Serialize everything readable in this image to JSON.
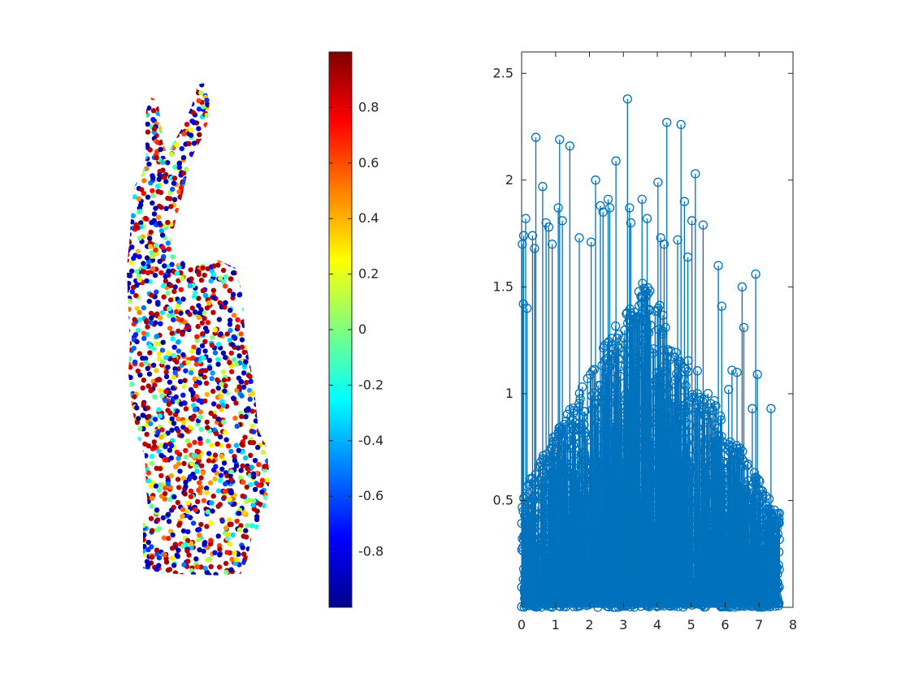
{
  "chart_data": [
    {
      "type": "scatter",
      "panel": "point-cloud",
      "title": "",
      "xlabel": "",
      "ylabel": "",
      "axes_visible": false,
      "colormap": "jet",
      "color_value_range": [
        -1,
        1
      ],
      "point_count": 2200,
      "colorbar": {
        "range": [
          -1,
          1
        ],
        "ticks": [
          0.8,
          0.6,
          0.4,
          0.2,
          0,
          -0.2,
          -0.4,
          -0.6,
          -0.8
        ],
        "tick_labels": [
          "0.8",
          "0.6",
          "0.4",
          "0.2",
          "0",
          "-0.2",
          "-0.4",
          "-0.6",
          "-0.8"
        ]
      }
    },
    {
      "type": "stem",
      "panel": "stem-plot",
      "title": "",
      "xlabel": "",
      "ylabel": "",
      "color": "#0072BD",
      "marker": "circle",
      "xlim": [
        0,
        8
      ],
      "ylim": [
        0,
        2.6
      ],
      "x_ticks": [
        0,
        1,
        2,
        3,
        4,
        5,
        6,
        7,
        8
      ],
      "x_tick_labels": [
        "0",
        "1",
        "2",
        "3",
        "4",
        "5",
        "6",
        "7",
        "8"
      ],
      "y_ticks": [
        0.5,
        1,
        1.5,
        2,
        2.5
      ],
      "y_tick_labels": [
        "0.5",
        "1",
        "1.5",
        "2",
        "2.5"
      ],
      "notable_points": [
        {
          "x": 0.02,
          "y": 1.7
        },
        {
          "x": 0.06,
          "y": 1.74
        },
        {
          "x": 0.12,
          "y": 1.82
        },
        {
          "x": 0.05,
          "y": 1.42
        },
        {
          "x": 0.16,
          "y": 1.4
        },
        {
          "x": 0.32,
          "y": 1.74
        },
        {
          "x": 0.38,
          "y": 1.68
        },
        {
          "x": 0.42,
          "y": 2.2
        },
        {
          "x": 0.62,
          "y": 1.97
        },
        {
          "x": 0.72,
          "y": 1.8
        },
        {
          "x": 0.8,
          "y": 1.78
        },
        {
          "x": 0.9,
          "y": 1.7
        },
        {
          "x": 1.12,
          "y": 2.19
        },
        {
          "x": 1.08,
          "y": 1.87
        },
        {
          "x": 1.2,
          "y": 1.81
        },
        {
          "x": 1.42,
          "y": 2.16
        },
        {
          "x": 1.7,
          "y": 1.73
        },
        {
          "x": 2.05,
          "y": 1.71
        },
        {
          "x": 2.18,
          "y": 2.0
        },
        {
          "x": 2.32,
          "y": 1.88
        },
        {
          "x": 2.4,
          "y": 1.85
        },
        {
          "x": 2.55,
          "y": 1.91
        },
        {
          "x": 2.6,
          "y": 1.87
        },
        {
          "x": 2.78,
          "y": 2.09
        },
        {
          "x": 3.12,
          "y": 2.38
        },
        {
          "x": 3.18,
          "y": 1.87
        },
        {
          "x": 3.22,
          "y": 1.8
        },
        {
          "x": 3.55,
          "y": 1.91
        },
        {
          "x": 3.7,
          "y": 1.82
        },
        {
          "x": 4.02,
          "y": 1.99
        },
        {
          "x": 4.1,
          "y": 1.73
        },
        {
          "x": 4.2,
          "y": 1.7
        },
        {
          "x": 4.28,
          "y": 2.27
        },
        {
          "x": 4.6,
          "y": 1.72
        },
        {
          "x": 4.7,
          "y": 2.26
        },
        {
          "x": 4.8,
          "y": 1.9
        },
        {
          "x": 4.9,
          "y": 1.64
        },
        {
          "x": 5.02,
          "y": 1.81
        },
        {
          "x": 5.12,
          "y": 2.03
        },
        {
          "x": 5.35,
          "y": 1.79
        },
        {
          "x": 5.8,
          "y": 1.6
        },
        {
          "x": 5.9,
          "y": 1.41
        },
        {
          "x": 6.1,
          "y": 1.02
        },
        {
          "x": 6.2,
          "y": 1.11
        },
        {
          "x": 6.35,
          "y": 1.1
        },
        {
          "x": 6.5,
          "y": 1.5
        },
        {
          "x": 6.55,
          "y": 1.31
        },
        {
          "x": 6.8,
          "y": 0.93
        },
        {
          "x": 6.9,
          "y": 1.56
        },
        {
          "x": 6.95,
          "y": 1.09
        },
        {
          "x": 7.1,
          "y": 0.53
        },
        {
          "x": 7.2,
          "y": 0.52
        },
        {
          "x": 7.15,
          "y": 0.46
        },
        {
          "x": 7.12,
          "y": 0.11
        },
        {
          "x": 7.35,
          "y": 0.93
        },
        {
          "x": 7.38,
          "y": 0.24
        },
        {
          "x": 7.6,
          "y": 0.44
        }
      ],
      "bulk_distribution": {
        "x_range": [
          0,
          7.6
        ],
        "y_range": [
          0,
          1.6
        ],
        "point_count": 2200
      }
    }
  ]
}
